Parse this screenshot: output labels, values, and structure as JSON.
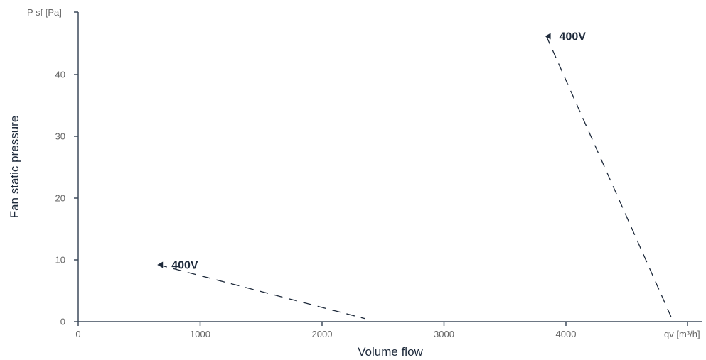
{
  "chart_data": {
    "type": "line",
    "xlabel": "Volume flow",
    "ylabel": "Fan static pressure",
    "x_unit_label": "qv [m³/h]",
    "y_unit_label": "P sf [Pa]",
    "xlim": [
      0,
      5000
    ],
    "ylim": [
      0,
      50
    ],
    "x_ticks": [
      0,
      1000,
      2000,
      3000,
      4000
    ],
    "y_ticks": [
      0,
      10,
      20,
      30,
      40
    ],
    "grid": false,
    "series": [
      {
        "name": "400V",
        "points": [
          [
            660,
            9.2
          ],
          [
            2350,
            0.5
          ]
        ],
        "label_at": [
          660,
          9.2
        ],
        "style": "dashed",
        "color": "#1e2a3b"
      },
      {
        "name": "400V",
        "points": [
          [
            3840,
            46.2
          ],
          [
            4880,
            0
          ]
        ],
        "label_at": [
          3840,
          46.2
        ],
        "style": "dashed",
        "color": "#1e2a3b"
      }
    ]
  }
}
